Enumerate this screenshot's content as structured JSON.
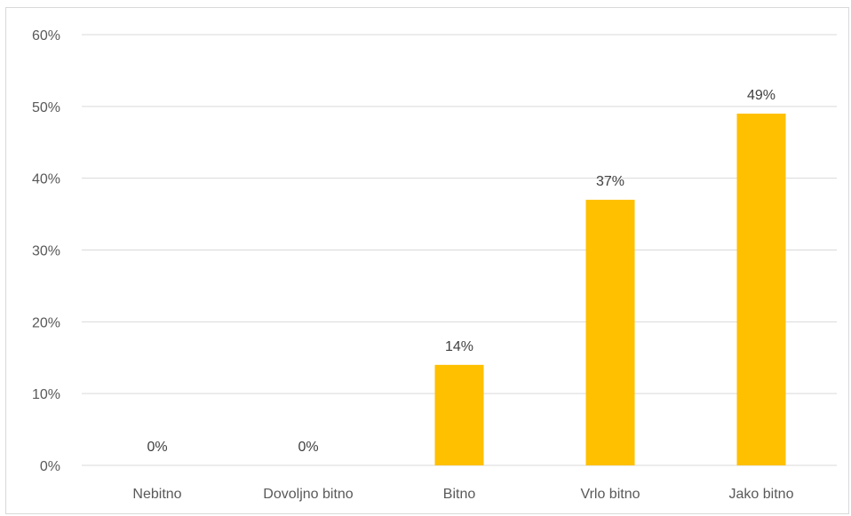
{
  "chart_data": {
    "type": "bar",
    "categories": [
      "Nebitno",
      "Dovoljno bitno",
      "Bitno",
      "Vrlo bitno",
      "Jako bitno"
    ],
    "values": [
      0,
      0,
      14,
      37,
      49
    ],
    "data_labels": [
      "0%",
      "0%",
      "14%",
      "37%",
      "49%"
    ],
    "title": "",
    "xlabel": "",
    "ylabel": "",
    "ylim": [
      0,
      60
    ],
    "yticks": [
      0,
      10,
      20,
      30,
      40,
      50,
      60
    ],
    "ytick_labels": [
      "0%",
      "10%",
      "20%",
      "30%",
      "40%",
      "50%",
      "60%"
    ],
    "grid": true,
    "legend": "none",
    "bar_color": "#FFC000",
    "gridline_color": "#d9d9d9"
  }
}
